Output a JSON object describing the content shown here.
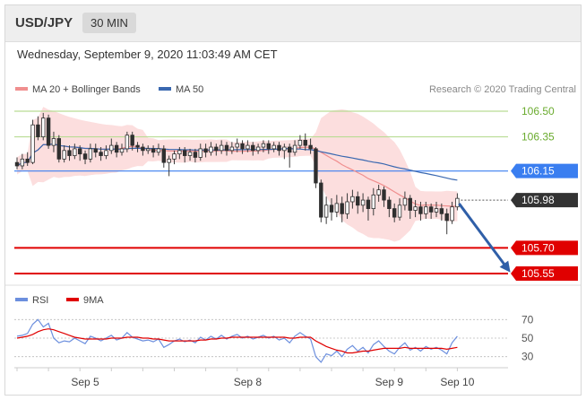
{
  "header": {
    "symbol": "USD/JPY",
    "timeframe": "30 MIN",
    "datetime": "Wednesday, September 9, 2020 11:03:49 AM CET"
  },
  "legend": {
    "ma20_label": "MA 20 + Bollinger Bands",
    "ma50_label": "MA 50",
    "rsi_label": "RSI",
    "ma9_label": "9MA"
  },
  "credit": "Research © 2020 Trading Central",
  "colors": {
    "bollinger_fill": "#fbd3d3",
    "ma20": "#f08f8f",
    "ma50": "#3a68b0",
    "support": "#e00000",
    "resistance_light": "#b9dc94",
    "resistance_blue": "#3a7ef0",
    "current": "#333333",
    "rsi": "#6c8fde",
    "rsi_ma": "#e00000",
    "arrow": "#2f5fa8"
  },
  "chart_data": {
    "type": "candlestick",
    "price_range": [
      105.49,
      106.55
    ],
    "price_scale_labels": [
      "106.50",
      "106.35",
      "106.15",
      "105.98",
      "105.70",
      "105.55"
    ],
    "levels": [
      {
        "price": 106.5,
        "label": "106.50",
        "style": "resistance_light"
      },
      {
        "price": 106.35,
        "label": "106.35",
        "style": "resistance_light"
      },
      {
        "price": 106.15,
        "label": "106.15",
        "style": "resistance_blue"
      },
      {
        "price": 105.98,
        "label": "105.98",
        "style": "current"
      },
      {
        "price": 105.7,
        "label": "105.70",
        "style": "support"
      },
      {
        "price": 105.55,
        "label": "105.55",
        "style": "support"
      }
    ],
    "x_labels": [
      {
        "index": 13,
        "label": "Sep 5"
      },
      {
        "index": 44,
        "label": "Sep 8"
      },
      {
        "index": 71,
        "label": "Sep 9"
      },
      {
        "index": 84,
        "label": "Sep 10"
      }
    ],
    "forecast": {
      "from_index": 84,
      "from_price": 105.98,
      "to_index": 93,
      "to_price": 105.55
    },
    "candles": [
      [
        106.2,
        106.18,
        106.23,
        106.16
      ],
      [
        106.18,
        106.22,
        106.25,
        106.16
      ],
      [
        106.22,
        106.2,
        106.26,
        106.18
      ],
      [
        106.2,
        106.42,
        106.45,
        106.19
      ],
      [
        106.42,
        106.35,
        106.47,
        106.33
      ],
      [
        106.35,
        106.46,
        106.49,
        106.33
      ],
      [
        106.46,
        106.3,
        106.48,
        106.28
      ],
      [
        106.3,
        106.34,
        106.38,
        106.26
      ],
      [
        106.34,
        106.22,
        106.36,
        106.2
      ],
      [
        106.22,
        106.27,
        106.3,
        106.2
      ],
      [
        106.27,
        106.24,
        106.3,
        106.21
      ],
      [
        106.24,
        106.28,
        106.31,
        106.22
      ],
      [
        106.28,
        106.25,
        106.3,
        106.21
      ],
      [
        106.25,
        106.22,
        106.27,
        106.19
      ],
      [
        106.22,
        106.28,
        106.31,
        106.2
      ],
      [
        106.28,
        106.26,
        106.31,
        106.23
      ],
      [
        106.26,
        106.24,
        106.29,
        106.21
      ],
      [
        106.24,
        106.27,
        106.3,
        106.22
      ],
      [
        106.27,
        106.3,
        106.34,
        106.25
      ],
      [
        106.3,
        106.26,
        106.32,
        106.23
      ],
      [
        106.26,
        106.28,
        106.31,
        106.24
      ],
      [
        106.28,
        106.36,
        106.38,
        106.26
      ],
      [
        106.36,
        106.3,
        106.38,
        106.27
      ],
      [
        106.3,
        106.29,
        106.32,
        106.26
      ],
      [
        106.29,
        106.27,
        106.31,
        106.24
      ],
      [
        106.27,
        106.28,
        106.3,
        106.25
      ],
      [
        106.28,
        106.26,
        106.3,
        106.23
      ],
      [
        106.26,
        106.28,
        106.31,
        106.24
      ],
      [
        106.28,
        106.2,
        106.3,
        106.17
      ],
      [
        106.2,
        106.22,
        106.24,
        106.12
      ],
      [
        106.22,
        106.25,
        106.27,
        106.19
      ],
      [
        106.25,
        106.27,
        106.29,
        106.22
      ],
      [
        106.27,
        106.24,
        106.29,
        106.2
      ],
      [
        106.24,
        106.26,
        106.28,
        106.21
      ],
      [
        106.26,
        106.23,
        106.28,
        106.2
      ],
      [
        106.23,
        106.28,
        106.31,
        106.21
      ],
      [
        106.28,
        106.26,
        106.31,
        106.23
      ],
      [
        106.26,
        106.29,
        106.32,
        106.24
      ],
      [
        106.29,
        106.27,
        106.31,
        106.24
      ],
      [
        106.27,
        106.3,
        106.33,
        106.25
      ],
      [
        106.3,
        106.27,
        106.32,
        106.24
      ],
      [
        106.27,
        106.29,
        106.32,
        106.25
      ],
      [
        106.29,
        106.31,
        106.34,
        106.26
      ],
      [
        106.31,
        106.28,
        106.33,
        106.25
      ],
      [
        106.28,
        106.3,
        106.33,
        106.26
      ],
      [
        106.3,
        106.27,
        106.32,
        106.24
      ],
      [
        106.27,
        106.29,
        106.31,
        106.25
      ],
      [
        106.29,
        106.31,
        106.33,
        106.26
      ],
      [
        106.31,
        106.28,
        106.33,
        106.25
      ],
      [
        106.28,
        106.3,
        106.32,
        106.26
      ],
      [
        106.3,
        106.27,
        106.32,
        106.24
      ],
      [
        106.27,
        106.29,
        106.31,
        106.22
      ],
      [
        106.29,
        106.26,
        106.31,
        106.17
      ],
      [
        106.26,
        106.3,
        106.33,
        106.24
      ],
      [
        106.3,
        106.33,
        106.36,
        106.28
      ],
      [
        106.33,
        106.3,
        106.37,
        106.27
      ],
      [
        106.3,
        106.28,
        106.34,
        106.25
      ],
      [
        106.28,
        106.08,
        106.29,
        106.05
      ],
      [
        106.08,
        105.88,
        106.1,
        105.85
      ],
      [
        105.88,
        105.95,
        106.0,
        105.84
      ],
      [
        105.95,
        105.91,
        105.99,
        105.86
      ],
      [
        105.91,
        105.96,
        106.01,
        105.88
      ],
      [
        105.96,
        105.9,
        106.0,
        105.85
      ],
      [
        105.9,
        105.97,
        106.02,
        105.87
      ],
      [
        105.97,
        106.0,
        106.04,
        105.93
      ],
      [
        106.0,
        105.95,
        106.03,
        105.9
      ],
      [
        105.95,
        105.98,
        106.02,
        105.91
      ],
      [
        105.98,
        105.93,
        106.0,
        105.86
      ],
      [
        105.93,
        106.01,
        106.05,
        105.89
      ],
      [
        106.01,
        106.04,
        106.07,
        105.97
      ],
      [
        106.04,
        105.98,
        106.06,
        105.94
      ],
      [
        105.98,
        105.93,
        106.0,
        105.88
      ],
      [
        105.93,
        105.88,
        105.96,
        105.85
      ],
      [
        105.88,
        105.95,
        105.99,
        105.86
      ],
      [
        105.95,
        105.99,
        106.03,
        105.92
      ],
      [
        105.99,
        105.92,
        106.01,
        105.87
      ],
      [
        105.92,
        105.94,
        105.98,
        105.88
      ],
      [
        105.94,
        105.9,
        105.97,
        105.86
      ],
      [
        105.9,
        105.94,
        105.97,
        105.87
      ],
      [
        105.94,
        105.91,
        105.96,
        105.87
      ],
      [
        105.91,
        105.93,
        105.97,
        105.88
      ],
      [
        105.93,
        105.9,
        105.96,
        105.86
      ],
      [
        105.9,
        105.86,
        105.93,
        105.78
      ],
      [
        105.86,
        105.94,
        105.97,
        105.84
      ],
      [
        105.94,
        105.99,
        106.02,
        105.92
      ]
    ],
    "rsi": {
      "axis_labels": [
        "70",
        "50",
        "30"
      ],
      "range": [
        20,
        80
      ],
      "rsi_values": [
        52,
        53,
        55,
        65,
        70,
        62,
        66,
        50,
        45,
        47,
        46,
        50,
        47,
        44,
        52,
        50,
        47,
        50,
        53,
        48,
        50,
        56,
        51,
        49,
        47,
        48,
        46,
        49,
        40,
        43,
        47,
        49,
        46,
        48,
        45,
        51,
        48,
        52,
        49,
        53,
        49,
        52,
        54,
        50,
        52,
        49,
        51,
        53,
        50,
        52,
        48,
        50,
        45,
        52,
        56,
        52,
        49,
        30,
        24,
        33,
        31,
        36,
        30,
        38,
        42,
        36,
        40,
        34,
        43,
        47,
        41,
        36,
        33,
        40,
        45,
        37,
        40,
        36,
        41,
        38,
        40,
        37,
        33,
        45,
        52
      ],
      "ma_values": [
        50,
        51,
        52,
        54,
        57,
        59,
        60,
        59,
        57,
        55,
        53,
        51,
        50,
        49,
        49,
        49,
        49,
        49,
        50,
        50,
        50,
        51,
        51,
        51,
        50,
        50,
        49,
        49,
        48,
        47,
        47,
        47,
        47,
        47,
        47,
        48,
        48,
        49,
        49,
        50,
        50,
        51,
        51,
        51,
        51,
        51,
        51,
        51,
        51,
        51,
        51,
        51,
        50,
        50,
        51,
        51,
        51,
        47,
        44,
        41,
        39,
        37,
        36,
        34,
        34,
        35,
        36,
        36,
        37,
        38,
        39,
        39,
        39,
        39,
        40,
        39,
        39,
        39,
        39,
        39,
        39,
        39,
        38,
        39,
        40
      ]
    }
  }
}
